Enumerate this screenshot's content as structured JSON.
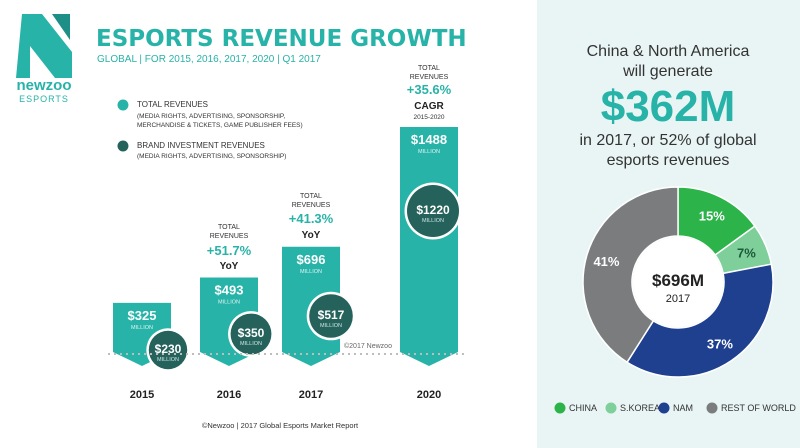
{
  "brand": {
    "name": "newzoo",
    "sub": "ESPORTS",
    "colors": {
      "teal": "#27b3a8",
      "dark_teal": "#26625c",
      "gray": "#606060"
    }
  },
  "title": "ESPORTS REVENUE GROWTH",
  "subtitle": "GLOBAL | FOR 2015, 2016, 2017, 2020 | Q1 2017",
  "legend": [
    {
      "label": "TOTAL REVENUES",
      "detail_lines": [
        "(MEDIA RIGHTS, ADVERTISING, SPONSORSHIP,",
        "MERCHANDISE & TICKETS, GAME PUBLISHER FEES)"
      ],
      "color": "#27b3a8"
    },
    {
      "label": "BRAND INVESTMENT REVENUES",
      "detail_lines": [
        "(MEDIA RIGHTS, ADVERTISING, SPONSORSHIP)"
      ],
      "color": "#26625c"
    }
  ],
  "growth_labels": [
    {
      "year": "2016",
      "top": [
        "TOTAL",
        "REVENUES"
      ],
      "pct": "+51.7%",
      "tag": "YoY"
    },
    {
      "year": "2017",
      "top": [
        "TOTAL",
        "REVENUES"
      ],
      "pct": "+41.3%",
      "tag": "YoY"
    },
    {
      "year": "2020",
      "top": [
        "TOTAL",
        "REVENUES"
      ],
      "pct": "+35.6%",
      "tag": "CAGR",
      "tag_sub": "2015-2020"
    }
  ],
  "bar_value_labels": [
    "$325",
    "$493",
    "$696",
    "$1488"
  ],
  "circle_value_labels": [
    "$230",
    "$350",
    "$517",
    "$1220"
  ],
  "unit_label": "MILLION",
  "copyright_small": "©2017 Newzoo",
  "footer": "©Newzoo | 2017 Global Esports Market Report",
  "right": {
    "line1": "China & North America",
    "line2": "will generate",
    "big": "$362M",
    "line3": "in 2017, or 52% of global",
    "line4": "esports revenues",
    "center_value": "$696M",
    "center_year": "2017"
  },
  "chart_data": [
    {
      "type": "bar",
      "title": "ESPORTS REVENUE GROWTH",
      "categories": [
        "2015",
        "2016",
        "2017",
        "2020"
      ],
      "series": [
        {
          "name": "TOTAL REVENUES",
          "values": [
            325,
            493,
            696,
            1488
          ],
          "color": "#27b3a8"
        },
        {
          "name": "BRAND INVESTMENT REVENUES",
          "values": [
            230,
            350,
            517,
            1220
          ],
          "color": "#26625c"
        }
      ],
      "ylabel": "",
      "xlabel": "",
      "ylim": [
        0,
        1488
      ]
    },
    {
      "type": "pie",
      "labels": [
        "CHINA",
        "S.KOREA",
        "NAM",
        "REST OF WORLD"
      ],
      "values": [
        15,
        7,
        37,
        41
      ],
      "slice_labels": [
        "15%",
        "7%",
        "37%",
        "41%"
      ],
      "colors": [
        "#2cb34a",
        "#7fcf9a",
        "#1f3f8f",
        "#7b7c7e"
      ],
      "legend_position": "bottom"
    }
  ]
}
